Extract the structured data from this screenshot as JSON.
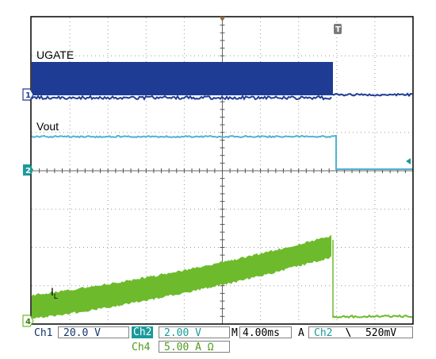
{
  "colors": {
    "grid": "#9a9a9a",
    "ch1": "#1f3c94",
    "ch2": "#4fb3d1",
    "ch4": "#6dbb2c",
    "ch2_marker": "#1a9a9a",
    "frame": "#000000"
  },
  "trace_labels": {
    "ugate": "UGATE",
    "vout": "Vout",
    "il_main": "I",
    "il_sub": "L"
  },
  "markers": {
    "ch1": "1",
    "ch2": "2",
    "ch4": "4",
    "trigger": "T"
  },
  "status_bar": {
    "ch1_label": "Ch1",
    "ch1_scale": "20.0 V",
    "ch2_label": "Ch2",
    "ch2_scale": "2.00 V",
    "time_label": "M",
    "timebase": "4.00ms",
    "acq_mode": "A",
    "trig_source": "Ch2",
    "trig_slope": "\\",
    "trig_level": "520mV",
    "ch4_label": "Ch4",
    "ch4_scale": "5.00 A Ω"
  },
  "chart_data": {
    "type": "line",
    "title": "",
    "xlabel": "",
    "ylabel": "",
    "grid": true,
    "divisions": {
      "x": 10,
      "y": 8
    },
    "timebase_per_div": "4.00ms",
    "series": [
      {
        "name": "UGATE",
        "channel": "Ch1",
        "scale_per_div": "20.0 V",
        "description_points_div": [
          [
            0,
            0.55
          ],
          [
            7.9,
            0.55
          ],
          [
            7.9,
            0.0
          ],
          [
            10,
            0.0
          ]
        ],
        "switching_band_div": [
          0.0,
          1.0
        ]
      },
      {
        "name": "Vout",
        "channel": "Ch2",
        "scale_per_div": "2.00 V",
        "points_div": [
          [
            0,
            1.05
          ],
          [
            7.9,
            1.05
          ],
          [
            7.95,
            0.0
          ],
          [
            10,
            0.0
          ]
        ]
      },
      {
        "name": "IL",
        "channel": "Ch4",
        "scale_per_div": "5.00 A",
        "points_div": [
          [
            0,
            0.15
          ],
          [
            3,
            0.95
          ],
          [
            6,
            2.0
          ],
          [
            7.9,
            2.65
          ],
          [
            7.9,
            0.0
          ],
          [
            10,
            0.0
          ]
        ],
        "ripple_div": 0.5
      }
    ]
  }
}
